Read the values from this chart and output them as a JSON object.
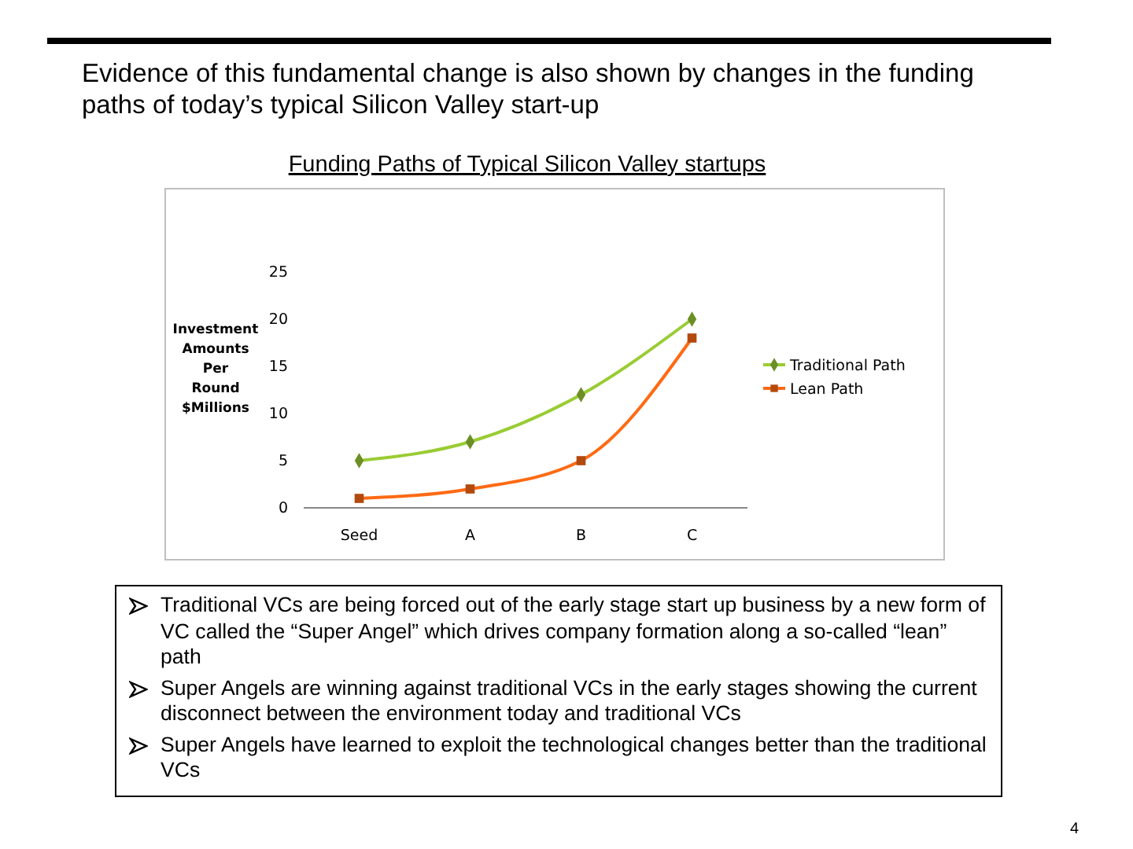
{
  "chart_data": {
    "type": "line",
    "title": "Evidence of this fundamental change is also shown by changes in the funding paths of today’s typical Silicon Valley start-up",
    "subtitle": "Funding Paths of Typical Silicon Valley startups",
    "ylabel": "Investment Amounts Per Round $Millions",
    "categories": [
      "Seed",
      "A",
      "B",
      "C"
    ],
    "series": [
      {
        "name": "Traditional Path",
        "color": "#99cc33",
        "marker": "diamond",
        "values": [
          5,
          7,
          12,
          20
        ]
      },
      {
        "name": "Lean Path",
        "color": "#ff6a13",
        "marker": "square",
        "values": [
          1,
          2,
          5,
          18
        ]
      }
    ],
    "ylim": [
      0,
      25
    ],
    "yticks": [
      0,
      5,
      10,
      15,
      20,
      25
    ],
    "grid": false,
    "legend": "right",
    "line_style": "solid",
    "annotations": [
      "Traditional VCs are being forced out of the early stage start up business by a new form of VC called the “Super Angel” which drives company formation along a so-called “lean” path",
      "Super Angels are winning against traditional VCs in the early stages showing the current disconnect between the environment today and traditional VCs",
      "Super Angels have learned to exploit the technological changes better than the traditional VCs",
      "4"
    ]
  }
}
